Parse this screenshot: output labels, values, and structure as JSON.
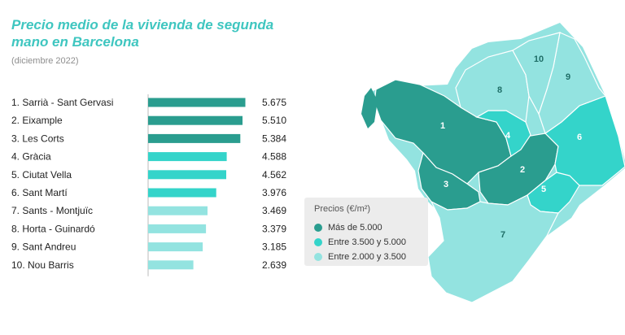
{
  "chart_data": {
    "type": "bar",
    "orientation": "horizontal",
    "title": "Precio medio de la vivienda de segunda mano en Barcelona",
    "subtitle": "(diciembre 2022)",
    "categories": [
      "1. Sarrià - Sant Gervasi",
      "2. Eixample",
      "3. Les Corts",
      "4. Gràcia",
      "5. Ciutat Vella",
      "6. Sant Martí",
      "7. Sants - Montjuïc",
      "8. Horta - Guinardó",
      "9. Sant Andreu",
      "10. Nou Barris"
    ],
    "values": [
      5675,
      5510,
      5384,
      4588,
      4562,
      3976,
      3469,
      3379,
      3185,
      2639
    ],
    "value_labels": [
      "5.675",
      "5.510",
      "5.384",
      "4.588",
      "4.562",
      "3.976",
      "3.469",
      "3.379",
      "3.185",
      "2.639"
    ],
    "tiers": [
      "high",
      "high",
      "high",
      "mid",
      "mid",
      "mid",
      "low",
      "low",
      "low",
      "low"
    ],
    "xlim": [
      0,
      5700
    ],
    "grid": false,
    "legend_position": "bottom-center"
  },
  "colors": {
    "high": "#2a9d8f",
    "mid": "#34d4ca",
    "low": "#93e3e0",
    "title": "#3fc6c0",
    "legend_bg": "#ececec"
  },
  "legend": {
    "title": "Precios (€/m²)",
    "items": [
      {
        "label": "Más de 5.000",
        "tier": "high"
      },
      {
        "label": "Entre 3.500 y 5.000",
        "tier": "mid"
      },
      {
        "label": "Entre 2.000 y 3.500",
        "tier": "low"
      }
    ]
  },
  "map": {
    "district_numbers": [
      "1",
      "2",
      "3",
      "4",
      "5",
      "6",
      "7",
      "8",
      "9",
      "10"
    ],
    "district_tiers": [
      "high",
      "high",
      "high",
      "mid",
      "mid",
      "mid",
      "low",
      "low",
      "low",
      "low"
    ]
  }
}
